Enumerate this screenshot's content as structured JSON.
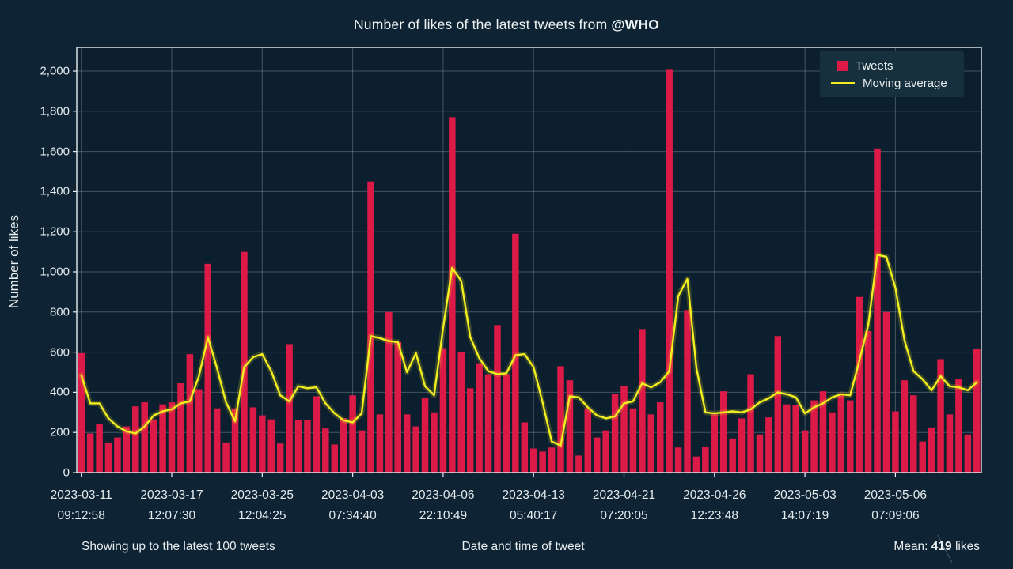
{
  "title": {
    "prefix": "Number of likes of the latest tweets from ",
    "handle": "@WHO"
  },
  "legend": {
    "tweets_label": "Tweets",
    "moving_average_label": "Moving average"
  },
  "y_axis": {
    "label": "Number of likes",
    "ticks": [
      "0",
      "200",
      "400",
      "600",
      "800",
      "1,000",
      "1,200",
      "1,400",
      "1,600",
      "1,800",
      "2,000"
    ]
  },
  "x_axis": {
    "label": "Date and time of tweet",
    "ticks": [
      {
        "date": "2023-03-11",
        "time": "09:12:58"
      },
      {
        "date": "2023-03-17",
        "time": "12:07:30"
      },
      {
        "date": "2023-03-25",
        "time": "12:04:25"
      },
      {
        "date": "2023-04-03",
        "time": "07:34:40"
      },
      {
        "date": "2023-04-06",
        "time": "22:10:49"
      },
      {
        "date": "2023-04-13",
        "time": "05:40:17"
      },
      {
        "date": "2023-04-21",
        "time": "07:20:05"
      },
      {
        "date": "2023-04-26",
        "time": "12:23:48"
      },
      {
        "date": "2023-05-03",
        "time": "14:07:19"
      },
      {
        "date": "2023-05-06",
        "time": "07:09:06"
      }
    ]
  },
  "footer": {
    "left_note": "Showing up to the latest 100 tweets",
    "mean_prefix": "Mean: ",
    "mean_value": "419",
    "mean_suffix": " likes"
  },
  "colors": {
    "background": "#0e2434",
    "plot_background": "#0c1f2e",
    "bar": "#dc1a47",
    "line": "#f2ee20",
    "grid": "#b4c8d2",
    "spine": "#e8eef0",
    "text": "#e9eef0",
    "legend_background": "#16313d"
  },
  "chart_data": {
    "type": "bar",
    "title": "Number of likes of the latest tweets from @WHO",
    "xlabel": "Date and time of tweet",
    "ylabel": "Number of likes",
    "ylim": [
      0,
      2115
    ],
    "y_ticks": [
      0,
      200,
      400,
      600,
      800,
      1000,
      1200,
      1400,
      1600,
      1800,
      2000
    ],
    "grid": true,
    "legend_position": "upper right",
    "x_tick_positions": [
      0,
      10,
      20,
      30,
      40,
      50,
      60,
      70,
      80,
      90
    ],
    "x_tick_labels": [
      "2023-03-11 09:12:58",
      "2023-03-17 12:07:30",
      "2023-03-25 12:04:25",
      "2023-04-03 07:34:40",
      "2023-04-06 22:10:49",
      "2023-04-13 05:40:17",
      "2023-04-21 07:20:05",
      "2023-04-26 12:23:48",
      "2023-05-03 14:07:19",
      "2023-05-06 07:09:06"
    ],
    "mean": 419,
    "series": [
      {
        "name": "Tweets",
        "type": "bar",
        "color": "#dc1a47",
        "values": [
          595,
          195,
          240,
          150,
          175,
          230,
          330,
          350,
          265,
          340,
          350,
          445,
          590,
          415,
          1040,
          320,
          150,
          320,
          1100,
          325,
          285,
          265,
          145,
          640,
          260,
          260,
          380,
          220,
          140,
          270,
          385,
          210,
          1450,
          290,
          800,
          650,
          290,
          230,
          370,
          300,
          620,
          1770,
          600,
          420,
          545,
          490,
          735,
          490,
          1190,
          250,
          120,
          105,
          125,
          530,
          460,
          85,
          320,
          175,
          210,
          390,
          430,
          320,
          715,
          290,
          350,
          2010,
          125,
          810,
          80,
          130,
          290,
          405,
          170,
          270,
          490,
          190,
          275,
          680,
          340,
          335,
          210,
          360,
          405,
          300,
          395,
          360,
          875,
          705,
          1615,
          800,
          305,
          460,
          385,
          155,
          225,
          565,
          290,
          465,
          190,
          615
        ]
      },
      {
        "name": "Moving average",
        "type": "line",
        "color": "#f2ee20",
        "values": [
          485,
          345,
          345,
          270,
          230,
          205,
          195,
          230,
          285,
          305,
          315,
          345,
          355,
          480,
          675,
          520,
          350,
          255,
          525,
          575,
          590,
          505,
          385,
          355,
          430,
          420,
          425,
          345,
          295,
          260,
          250,
          295,
          680,
          670,
          655,
          650,
          500,
          595,
          430,
          385,
          720,
          1020,
          955,
          675,
          570,
          505,
          490,
          495,
          585,
          590,
          525,
          350,
          155,
          135,
          380,
          375,
          325,
          285,
          270,
          280,
          345,
          355,
          445,
          425,
          450,
          505,
          880,
          965,
          520,
          300,
          295,
          300,
          305,
          300,
          315,
          350,
          370,
          400,
          390,
          375,
          295,
          325,
          345,
          375,
          390,
          385,
          555,
          735,
          1085,
          1075,
          920,
          660,
          505,
          465,
          410,
          480,
          430,
          425,
          410,
          450
        ]
      }
    ]
  }
}
